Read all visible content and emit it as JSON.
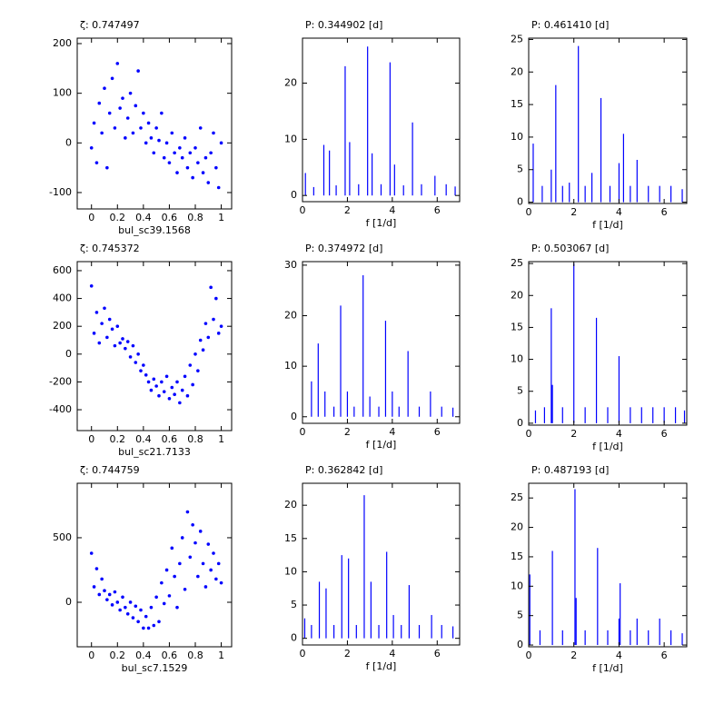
{
  "chart_data": [
    {
      "type": "scatter",
      "title": "ζ: 0.747497",
      "xlabel": "bul_sc39.1568",
      "color": "#0000ff",
      "xlim": [
        -0.11,
        1.08
      ],
      "ylim": [
        -133,
        211
      ],
      "xticks": [
        0,
        0.2,
        0.4,
        0.6,
        0.8,
        1
      ],
      "yticks": [
        -100,
        0,
        100,
        200
      ],
      "x": [
        0,
        0.02,
        0.04,
        0.06,
        0.08,
        0.1,
        0.12,
        0.14,
        0.16,
        0.18,
        0.2,
        0.22,
        0.24,
        0.26,
        0.28,
        0.3,
        0.32,
        0.34,
        0.36,
        0.38,
        0.4,
        0.42,
        0.44,
        0.46,
        0.48,
        0.5,
        0.52,
        0.54,
        0.56,
        0.58,
        0.6,
        0.62,
        0.64,
        0.66,
        0.68,
        0.7,
        0.72,
        0.74,
        0.76,
        0.78,
        0.8,
        0.82,
        0.84,
        0.86,
        0.88,
        0.9,
        0.92,
        0.94,
        0.96,
        0.98,
        1
      ],
      "values": [
        -10,
        40,
        -40,
        80,
        20,
        110,
        -50,
        60,
        130,
        30,
        160,
        70,
        90,
        10,
        50,
        100,
        20,
        75,
        145,
        30,
        60,
        0,
        40,
        10,
        -20,
        30,
        5,
        60,
        -30,
        0,
        -40,
        20,
        -20,
        -60,
        -10,
        -30,
        10,
        -50,
        -20,
        -70,
        -10,
        -40,
        30,
        -60,
        -30,
        -80,
        -20,
        20,
        -50,
        -90,
        0
      ]
    },
    {
      "type": "stem",
      "title": "P: 0.344902 [d]",
      "xlabel": "f [1/d]",
      "color": "#0000ff",
      "xlim": [
        0,
        7
      ],
      "ylim": [
        -1.1,
        28
      ],
      "xticks": [
        0,
        2,
        4,
        6
      ],
      "yticks": [
        0,
        10,
        20
      ],
      "x": [
        0.13,
        0.5,
        0.95,
        1.2,
        1.5,
        1.9,
        2.1,
        2.5,
        2.9,
        3.1,
        3.5,
        3.9,
        4.1,
        4.5,
        4.9,
        5.3,
        5.9,
        6.4,
        6.8
      ],
      "values": [
        4,
        1.5,
        9,
        8,
        1.8,
        23,
        9.5,
        2,
        26.5,
        7.5,
        2,
        23.7,
        5.5,
        1.8,
        13,
        2,
        3.5,
        2,
        1.6
      ]
    },
    {
      "type": "stem",
      "title": "P: 0.461410 [d]",
      "xlabel": "f [1/d]",
      "color": "#0000ff",
      "xlim": [
        0,
        7
      ],
      "ylim": [
        -0.2,
        25.2
      ],
      "xticks": [
        0,
        2,
        4,
        6
      ],
      "yticks": [
        0,
        5,
        10,
        15,
        20,
        25
      ],
      "x": [
        0.2,
        0.6,
        1.0,
        1.2,
        1.5,
        1.8,
        2.2,
        2.5,
        2.8,
        3.2,
        3.6,
        4.0,
        4.2,
        4.5,
        4.8,
        5.3,
        5.8,
        6.3,
        6.8
      ],
      "values": [
        9,
        2.5,
        5,
        18,
        2.5,
        3,
        24,
        2.5,
        4.5,
        16,
        2.5,
        6,
        10.5,
        2.5,
        6.5,
        2.5,
        2.5,
        2.5,
        2
      ]
    },
    {
      "type": "scatter",
      "title": "ζ: 0.745372",
      "xlabel": "bul_sc21.7133",
      "color": "#0000ff",
      "xlim": [
        -0.11,
        1.08
      ],
      "ylim": [
        -550,
        665
      ],
      "xticks": [
        0,
        0.2,
        0.4,
        0.6,
        0.8,
        1
      ],
      "yticks": [
        -400,
        -200,
        0,
        200,
        400,
        600
      ],
      "x": [
        0,
        0.02,
        0.04,
        0.06,
        0.08,
        0.1,
        0.12,
        0.14,
        0.16,
        0.18,
        0.2,
        0.22,
        0.24,
        0.26,
        0.28,
        0.3,
        0.32,
        0.34,
        0.36,
        0.38,
        0.4,
        0.42,
        0.44,
        0.46,
        0.48,
        0.5,
        0.52,
        0.54,
        0.56,
        0.58,
        0.6,
        0.62,
        0.64,
        0.66,
        0.68,
        0.7,
        0.72,
        0.74,
        0.76,
        0.78,
        0.8,
        0.82,
        0.84,
        0.86,
        0.88,
        0.9,
        0.92,
        0.94,
        0.96,
        0.98,
        1
      ],
      "values": [
        490,
        150,
        300,
        80,
        220,
        330,
        120,
        250,
        180,
        60,
        200,
        80,
        110,
        40,
        90,
        -20,
        60,
        -60,
        0,
        -120,
        -80,
        -150,
        -200,
        -260,
        -180,
        -230,
        -300,
        -200,
        -270,
        -160,
        -320,
        -240,
        -290,
        -200,
        -350,
        -260,
        -160,
        -300,
        -80,
        -220,
        0,
        -120,
        100,
        30,
        220,
        120,
        480,
        250,
        400,
        150,
        200
      ]
    },
    {
      "type": "stem",
      "title": "P: 0.374972 [d]",
      "xlabel": "f [1/d]",
      "color": "#0000ff",
      "xlim": [
        0,
        7
      ],
      "ylim": [
        -1.3,
        30.7
      ],
      "xticks": [
        0,
        2,
        4,
        6
      ],
      "yticks": [
        0,
        10,
        20,
        30
      ],
      "x": [
        0.4,
        0.7,
        1.0,
        1.4,
        1.7,
        2.0,
        2.3,
        2.7,
        3.0,
        3.4,
        3.7,
        4.0,
        4.3,
        4.7,
        5.2,
        5.7,
        6.2,
        6.7
      ],
      "values": [
        7,
        14.5,
        5,
        2,
        22,
        5,
        2,
        28,
        4,
        2,
        19,
        5,
        2,
        13,
        2,
        5,
        2,
        1.8
      ]
    },
    {
      "type": "stem",
      "title": "P: 0.503067 [d]",
      "xlabel": "f [1/d]",
      "color": "#0000ff",
      "xlim": [
        0,
        7
      ],
      "ylim": [
        -0.3,
        25.3
      ],
      "xticks": [
        0,
        2,
        4,
        6
      ],
      "yticks": [
        0,
        5,
        10,
        15,
        20,
        25
      ],
      "x": [
        0.3,
        0.7,
        1.0,
        1.05,
        1.5,
        2.0,
        2.5,
        3.0,
        3.5,
        4.0,
        4.5,
        5.0,
        5.5,
        6.0,
        6.5,
        6.9
      ],
      "values": [
        2,
        2.5,
        18,
        6,
        2.5,
        25,
        2.5,
        16.5,
        2.5,
        10.5,
        2.5,
        2.5,
        2.5,
        2.5,
        2.5,
        2
      ]
    },
    {
      "type": "scatter",
      "title": "ζ: 0.744759",
      "xlabel": "bul_sc7.1529",
      "color": "#0000ff",
      "xlim": [
        -0.11,
        1.08
      ],
      "ylim": [
        -345,
        922
      ],
      "xticks": [
        0,
        0.2,
        0.4,
        0.6,
        0.8,
        1
      ],
      "yticks": [
        0,
        500
      ],
      "x": [
        0,
        0.02,
        0.04,
        0.06,
        0.08,
        0.1,
        0.12,
        0.14,
        0.16,
        0.18,
        0.2,
        0.22,
        0.24,
        0.26,
        0.28,
        0.3,
        0.32,
        0.34,
        0.36,
        0.38,
        0.4,
        0.42,
        0.44,
        0.46,
        0.48,
        0.5,
        0.52,
        0.54,
        0.56,
        0.58,
        0.6,
        0.62,
        0.64,
        0.66,
        0.68,
        0.7,
        0.72,
        0.74,
        0.76,
        0.78,
        0.8,
        0.82,
        0.84,
        0.86,
        0.88,
        0.9,
        0.92,
        0.94,
        0.96,
        0.98,
        1
      ],
      "values": [
        380,
        120,
        260,
        60,
        180,
        90,
        20,
        60,
        -20,
        80,
        0,
        -60,
        40,
        -40,
        -90,
        0,
        -120,
        -30,
        -150,
        -60,
        -200,
        -110,
        -200,
        -40,
        -180,
        40,
        -150,
        150,
        -10,
        250,
        50,
        420,
        200,
        -40,
        300,
        500,
        100,
        700,
        350,
        600,
        460,
        200,
        550,
        300,
        120,
        450,
        250,
        380,
        180,
        300,
        150
      ]
    },
    {
      "type": "stem",
      "title": "P: 0.362842 [d]",
      "xlabel": "f [1/d]",
      "color": "#0000ff",
      "xlim": [
        0,
        7
      ],
      "ylim": [
        -1,
        23.3
      ],
      "xticks": [
        0,
        2,
        4,
        6
      ],
      "yticks": [
        0,
        5,
        10,
        15,
        20
      ],
      "x": [
        0.1,
        0.4,
        0.75,
        1.05,
        1.4,
        1.75,
        2.05,
        2.4,
        2.75,
        3.05,
        3.4,
        3.75,
        4.05,
        4.4,
        4.75,
        5.2,
        5.75,
        6.2,
        6.7
      ],
      "values": [
        3,
        2,
        8.5,
        7.5,
        2,
        12.5,
        12,
        2,
        21.5,
        8.5,
        2,
        13,
        3.5,
        2,
        8,
        2,
        3.5,
        2,
        1.8
      ]
    },
    {
      "type": "stem",
      "title": "P: 0.487193 [d]",
      "xlabel": "f [1/d]",
      "color": "#0000ff",
      "xlim": [
        0,
        7
      ],
      "ylim": [
        -0.3,
        27.5
      ],
      "xticks": [
        0,
        2,
        4,
        6
      ],
      "yticks": [
        0,
        5,
        10,
        15,
        20,
        25
      ],
      "x": [
        0.05,
        0.5,
        1.05,
        1.5,
        2.05,
        2.1,
        2.5,
        3.05,
        3.5,
        4.0,
        4.05,
        4.5,
        4.8,
        5.3,
        5.8,
        6.3,
        6.8
      ],
      "values": [
        12,
        2.5,
        16,
        2.5,
        26.5,
        8,
        2.5,
        16.5,
        2.5,
        4.5,
        10.5,
        2.5,
        4.5,
        2.5,
        4.5,
        2.5,
        2
      ]
    }
  ]
}
